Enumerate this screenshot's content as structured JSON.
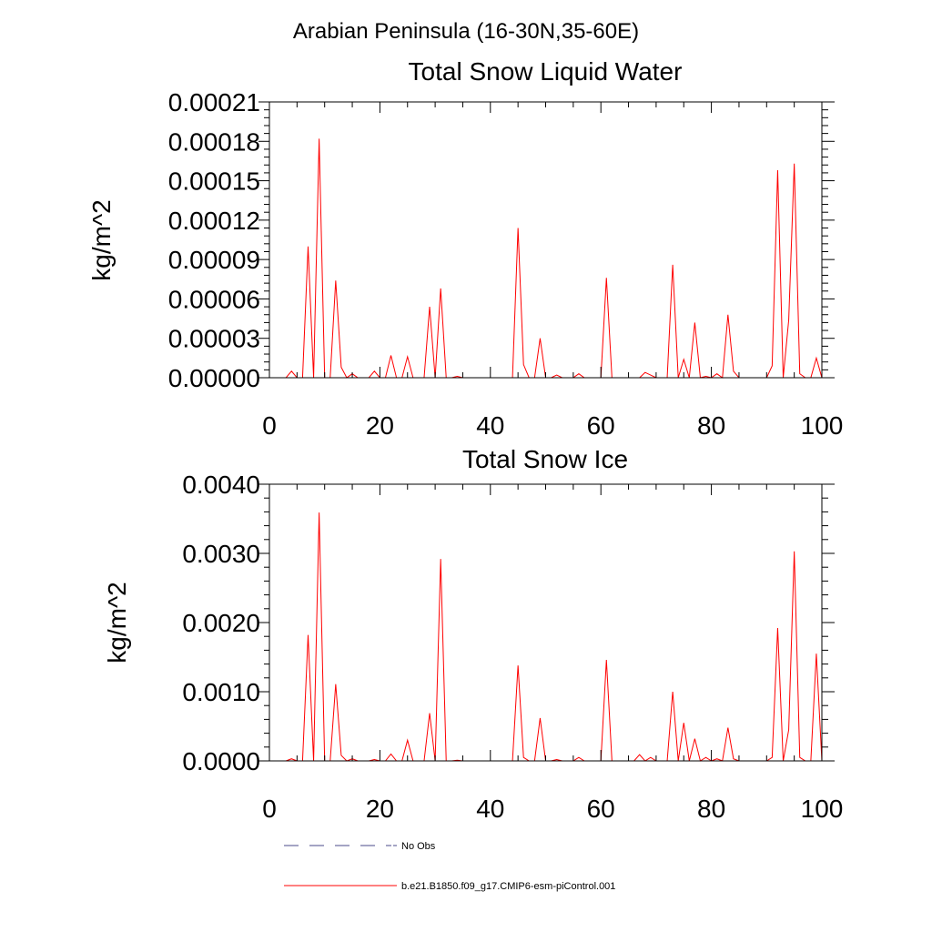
{
  "figure_title": "Arabian Peninsula (16-30N,35-60E)",
  "colors": {
    "model": "#ff0000",
    "obs": "#4a4a8a",
    "axis": "#000000"
  },
  "legend": [
    {
      "label": "No Obs",
      "style": "dashed"
    },
    {
      "label": "b.e21.B1850.f09_g17.CMIP6-esm-piControl.001",
      "style": "solid"
    }
  ],
  "chart_data": [
    {
      "type": "line",
      "title": "Total Snow Liquid Water",
      "xlabel": "",
      "ylabel": "kg/m^2",
      "xlim": [
        0,
        100
      ],
      "ylim": [
        0,
        0.00021
      ],
      "xticks": [
        0,
        20,
        40,
        60,
        80,
        100
      ],
      "xtick_labels": [
        "0",
        "20",
        "40",
        "60",
        "80",
        "100"
      ],
      "yticks": [
        0,
        3e-05,
        6e-05,
        9e-05,
        0.00012,
        0.00015,
        0.00018,
        0.00021
      ],
      "ytick_labels": [
        "0.00000",
        "0.00003",
        "0.00006",
        "0.00009",
        "0.00012",
        "0.00015",
        "0.00018",
        "0.00021"
      ],
      "series": [
        {
          "name": "b.e21.B1850.f09_g17.CMIP6-esm-piControl.001",
          "x": [
            1,
            2,
            3,
            4,
            5,
            6,
            7,
            8,
            9,
            10,
            11,
            12,
            13,
            14,
            15,
            16,
            17,
            18,
            19,
            20,
            21,
            22,
            23,
            24,
            25,
            26,
            27,
            28,
            29,
            30,
            31,
            32,
            33,
            34,
            35,
            36,
            37,
            38,
            39,
            40,
            41,
            42,
            43,
            44,
            45,
            46,
            47,
            48,
            49,
            50,
            51,
            52,
            53,
            54,
            55,
            56,
            57,
            58,
            59,
            60,
            61,
            62,
            63,
            64,
            65,
            66,
            67,
            68,
            69,
            70,
            71,
            72,
            73,
            74,
            75,
            76,
            77,
            78,
            79,
            80,
            81,
            82,
            83,
            84,
            85,
            86,
            87,
            88,
            89,
            90,
            91,
            92,
            93,
            94,
            95,
            96,
            97,
            98,
            99,
            100
          ],
          "values": [
            0,
            0,
            0,
            5e-06,
            0,
            0,
            0.0001,
            0,
            0.000182,
            0,
            0,
            7.4e-05,
            8e-06,
            0,
            3e-06,
            0,
            0,
            0,
            5e-06,
            0,
            0,
            1.7e-05,
            0,
            0,
            1.6e-05,
            0,
            0,
            0,
            5.4e-05,
            0,
            6.8e-05,
            0,
            0,
            1e-06,
            0,
            0,
            0,
            0,
            0,
            0,
            0,
            0,
            0,
            0,
            0.000114,
            1e-05,
            0,
            0,
            3e-05,
            0,
            0,
            2e-06,
            0,
            0,
            0,
            3e-06,
            0,
            0,
            0,
            0,
            7.6e-05,
            0,
            0,
            0,
            0,
            0,
            0,
            4e-06,
            2e-06,
            0,
            0,
            0,
            8.6e-05,
            0,
            1.4e-05,
            0,
            4.2e-05,
            0,
            1e-06,
            0,
            3e-06,
            0,
            4.8e-05,
            5e-06,
            0,
            0,
            0,
            0,
            0,
            0,
            9e-06,
            0.000158,
            0,
            4.4e-05,
            0.000163,
            3e-06,
            0,
            0,
            1.5e-05,
            0
          ]
        }
      ]
    },
    {
      "type": "line",
      "title": "Total Snow Ice",
      "xlabel": "",
      "ylabel": "kg/m^2",
      "xlim": [
        0,
        100
      ],
      "ylim": [
        0,
        0.004
      ],
      "xticks": [
        0,
        20,
        40,
        60,
        80,
        100
      ],
      "xtick_labels": [
        "0",
        "20",
        "40",
        "60",
        "80",
        "100"
      ],
      "yticks": [
        0,
        0.001,
        0.002,
        0.003,
        0.004
      ],
      "ytick_labels": [
        "0.0000",
        "0.0010",
        "0.0020",
        "0.0030",
        "0.0040"
      ],
      "series": [
        {
          "name": "b.e21.B1850.f09_g17.CMIP6-esm-piControl.001",
          "x": [
            1,
            2,
            3,
            4,
            5,
            6,
            7,
            8,
            9,
            10,
            11,
            12,
            13,
            14,
            15,
            16,
            17,
            18,
            19,
            20,
            21,
            22,
            23,
            24,
            25,
            26,
            27,
            28,
            29,
            30,
            31,
            32,
            33,
            34,
            35,
            36,
            37,
            38,
            39,
            40,
            41,
            42,
            43,
            44,
            45,
            46,
            47,
            48,
            49,
            50,
            51,
            52,
            53,
            54,
            55,
            56,
            57,
            58,
            59,
            60,
            61,
            62,
            63,
            64,
            65,
            66,
            67,
            68,
            69,
            70,
            71,
            72,
            73,
            74,
            75,
            76,
            77,
            78,
            79,
            80,
            81,
            82,
            83,
            84,
            85,
            86,
            87,
            88,
            89,
            90,
            91,
            92,
            93,
            94,
            95,
            96,
            97,
            98,
            99,
            100
          ],
          "values": [
            0,
            0,
            0,
            3e-05,
            0,
            0,
            0.00182,
            0,
            0.00359,
            0,
            0,
            0.00111,
            8e-05,
            0,
            3e-05,
            0,
            0,
            0,
            2e-05,
            0,
            0,
            0.0001,
            0,
            0,
            0.0003,
            0,
            0,
            0,
            0.00069,
            0,
            0.00292,
            0,
            0,
            1e-05,
            0,
            0,
            0,
            0,
            0,
            0,
            0,
            0,
            0,
            0,
            0.00138,
            5e-05,
            0,
            0,
            0.00062,
            0,
            0,
            2e-05,
            0,
            0,
            0,
            5e-05,
            0,
            0,
            0,
            0,
            0.00146,
            0,
            0,
            0,
            0,
            0,
            9e-05,
            0,
            5e-05,
            0,
            0,
            0,
            0.001,
            0,
            0.00055,
            0,
            0.00032,
            0,
            5e-05,
            0,
            3e-05,
            0,
            0.00048,
            3e-05,
            0,
            0,
            0,
            0,
            0,
            0,
            5e-05,
            0.00192,
            0,
            0.00045,
            0.00303,
            5e-05,
            0,
            0,
            0.00155,
            0
          ]
        }
      ]
    }
  ]
}
